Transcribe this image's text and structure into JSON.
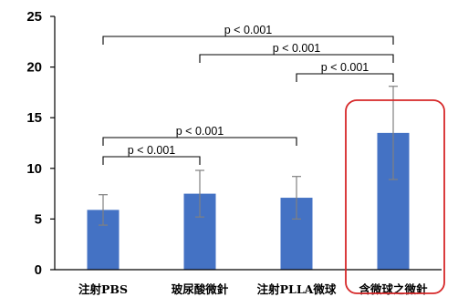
{
  "chart_data": {
    "type": "bar",
    "categories": [
      "注射PBS",
      "玻尿酸微針",
      "注射PLLA微球",
      "含微球之微針"
    ],
    "values": [
      5.9,
      7.5,
      7.1,
      13.5
    ],
    "error": [
      1.5,
      2.3,
      2.1,
      4.6
    ],
    "ylim": [
      0,
      25
    ],
    "yticks": [
      0,
      5,
      10,
      15,
      20,
      25
    ],
    "bar_color": "#4472c4",
    "highlight_color": "#d62728",
    "highlight_category": 3,
    "comparisons": [
      {
        "from": 0,
        "to": 3,
        "label": "p < 0.001"
      },
      {
        "from": 1,
        "to": 3,
        "label": "p < 0.001"
      },
      {
        "from": 2,
        "to": 3,
        "label": "p < 0.001"
      },
      {
        "from": 0,
        "to": 2,
        "label": "p < 0.001"
      },
      {
        "from": 0,
        "to": 1,
        "label": "p < 0.001"
      }
    ],
    "legend": "none",
    "grid": false
  }
}
